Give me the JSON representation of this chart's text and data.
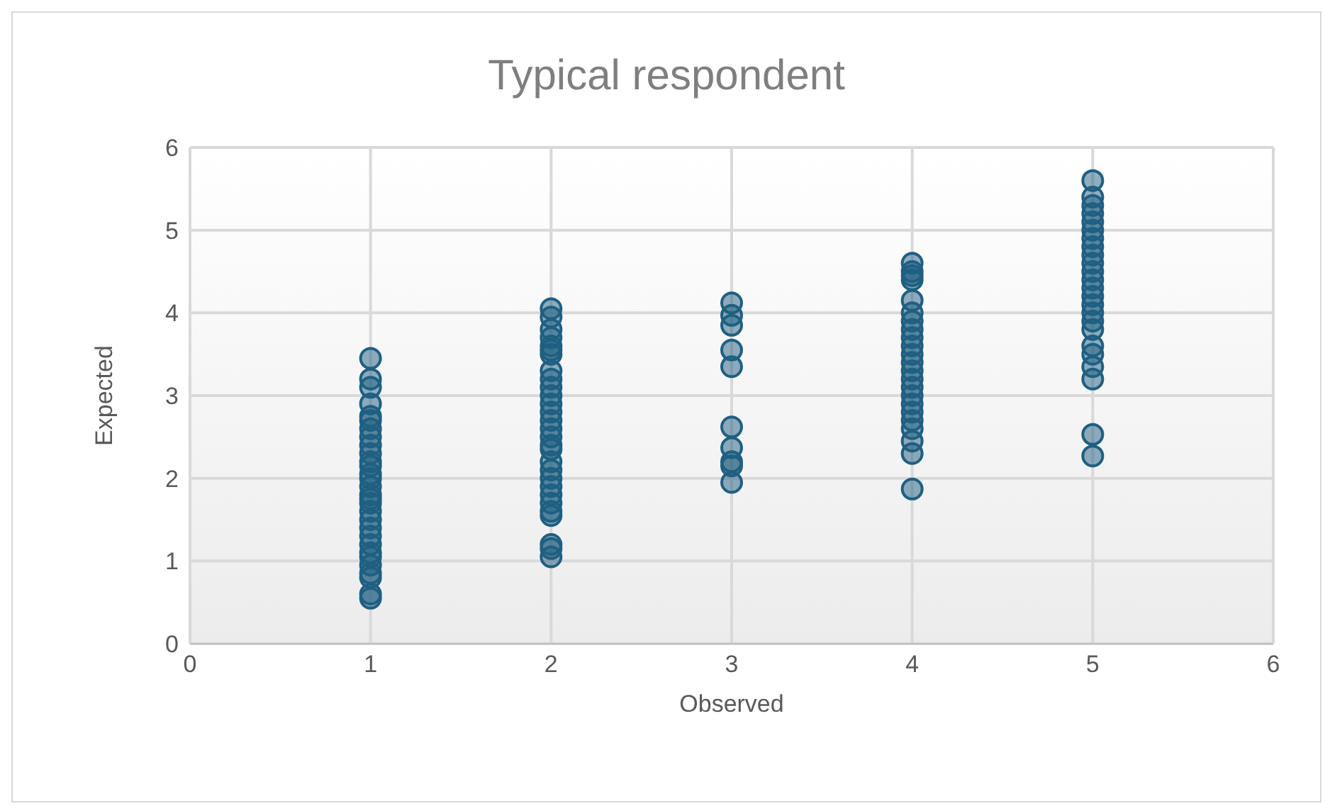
{
  "chart_data": {
    "type": "scatter",
    "title": "Typical respondent",
    "xlabel": "Observed",
    "ylabel": "Expected",
    "xlim": [
      0,
      6
    ],
    "xticks": [
      0,
      1,
      2,
      3,
      4,
      5,
      6
    ],
    "ylim": [
      0,
      6
    ],
    "yticks": [
      0,
      1,
      2,
      3,
      4,
      5,
      6
    ],
    "grid": true,
    "legend": false,
    "marker": "circle",
    "series": [
      {
        "color": "#1f5f82",
        "x": [
          1,
          1,
          1,
          1,
          1,
          1,
          1,
          1,
          1,
          1,
          1,
          1,
          1,
          1,
          1,
          1,
          1,
          1,
          1,
          1,
          1,
          1,
          1,
          1,
          1,
          1,
          1,
          1,
          1,
          1,
          2,
          2,
          2,
          2,
          2,
          2,
          2,
          2,
          2,
          2,
          2,
          2,
          2,
          2,
          2,
          2,
          2,
          2,
          2,
          2,
          2,
          2,
          2,
          2,
          2,
          2,
          2,
          2,
          2,
          3,
          3,
          3,
          3,
          3,
          3,
          3,
          3,
          3,
          3,
          4,
          4,
          4,
          4,
          4,
          4,
          4,
          4,
          4,
          4,
          4,
          4,
          4,
          4,
          4,
          4,
          4,
          4,
          4,
          4,
          4,
          4,
          4,
          5,
          5,
          5,
          5,
          5,
          5,
          5,
          5,
          5,
          5,
          5,
          5,
          5,
          5,
          5,
          5,
          5,
          5,
          5,
          5,
          5,
          5,
          5,
          5
        ],
        "values": [
          3.45,
          3.2,
          3.1,
          2.9,
          2.75,
          2.7,
          2.6,
          2.5,
          2.4,
          2.3,
          2.2,
          2.15,
          2.05,
          2.0,
          1.9,
          1.8,
          1.75,
          1.7,
          1.6,
          1.5,
          1.4,
          1.3,
          1.2,
          1.1,
          1.05,
          0.95,
          0.85,
          0.8,
          0.6,
          0.55,
          4.05,
          3.95,
          3.8,
          3.7,
          3.6,
          3.55,
          3.5,
          3.3,
          3.2,
          3.1,
          3.0,
          2.9,
          2.8,
          2.7,
          2.6,
          2.5,
          2.4,
          2.35,
          2.2,
          2.1,
          2.0,
          1.9,
          1.8,
          1.7,
          1.6,
          1.55,
          1.2,
          1.15,
          1.05,
          4.12,
          3.97,
          3.85,
          3.55,
          3.35,
          2.62,
          2.37,
          2.2,
          2.15,
          1.95,
          4.6,
          4.5,
          4.45,
          4.4,
          4.15,
          4.0,
          3.9,
          3.8,
          3.7,
          3.6,
          3.5,
          3.4,
          3.3,
          3.2,
          3.1,
          3.0,
          2.9,
          2.8,
          2.7,
          2.6,
          2.45,
          2.3,
          1.87,
          5.6,
          5.4,
          5.3,
          5.2,
          5.1,
          5.0,
          4.9,
          4.8,
          4.7,
          4.6,
          4.5,
          4.4,
          4.3,
          4.2,
          4.1,
          4.0,
          3.9,
          3.8,
          3.6,
          3.5,
          3.35,
          3.2,
          2.53,
          2.27
        ]
      }
    ]
  }
}
